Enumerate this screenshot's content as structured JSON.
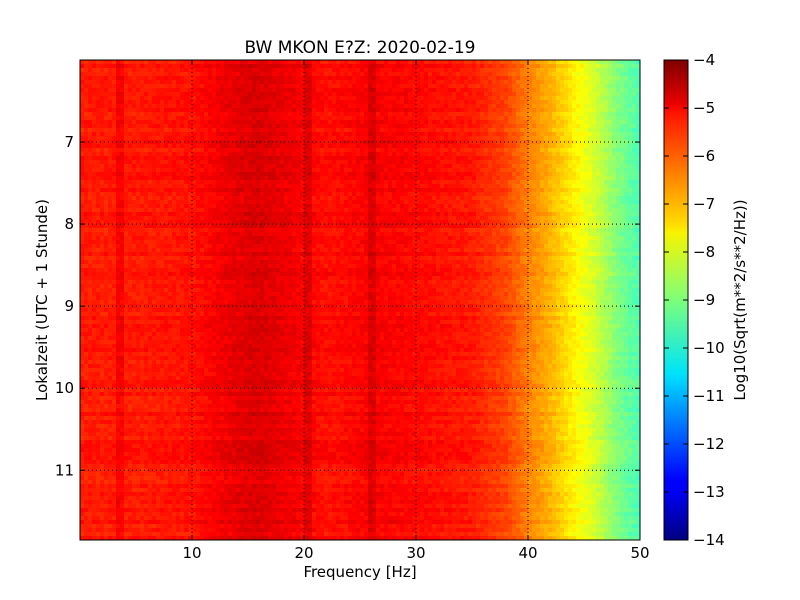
{
  "chart_data": {
    "type": "heatmap",
    "title": "BW MKON E?Z: 2020-02-19",
    "xlabel": "Frequency [Hz]",
    "ylabel": "Lokalzeit (UTC + 1 Stunde)",
    "xlim": [
      0,
      50
    ],
    "ylim": [
      6.0,
      11.85
    ],
    "y_inverted": true,
    "x_ticks": [
      10,
      20,
      30,
      40,
      50
    ],
    "y_ticks": [
      7,
      8,
      9,
      10,
      11
    ],
    "grid": true,
    "grid_style": "dotted",
    "colormap": "jet",
    "colorbar": {
      "label": "Log10(Sqrt(m**2/s**2/Hz))",
      "range": [
        -14,
        -4
      ],
      "ticks": [
        -4,
        -5,
        -6,
        -7,
        -8,
        -9,
        -10,
        -11,
        -12,
        -13,
        -14
      ]
    },
    "spectral_profile": {
      "frequency_hz": [
        0,
        5,
        10,
        14,
        16,
        20,
        22,
        26,
        30,
        35,
        38,
        40,
        42,
        44,
        46,
        48,
        50
      ],
      "level_log10": [
        -5.5,
        -5.5,
        -5.4,
        -5.0,
        -4.9,
        -5.2,
        -5.4,
        -5.2,
        -5.3,
        -5.5,
        -5.9,
        -6.5,
        -7.0,
        -7.6,
        -8.2,
        -9.0,
        -9.5
      ]
    },
    "narrowband_lines_hz": [
      3.5,
      20.2,
      26.2
    ],
    "colors": {
      "background": "#ffffff",
      "axes": "#000000",
      "grid": "#000000"
    }
  }
}
